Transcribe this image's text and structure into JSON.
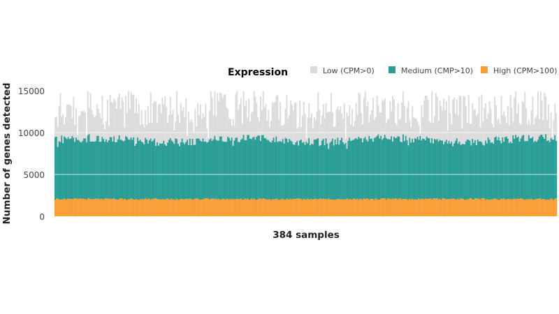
{
  "chart_data": {
    "type": "bar",
    "stacked": true,
    "n_samples": 384,
    "xlabel": "384 samples",
    "ylabel": "Number of genes detected",
    "ylim": [
      0,
      15000
    ],
    "yticks": [
      0,
      5000,
      10000,
      15000
    ],
    "grid": "horizontal",
    "legend": {
      "title": "Expression",
      "placement": "top-right",
      "entries": [
        {
          "name": "Low (CPM>0)",
          "color": "#dcdcdc"
        },
        {
          "name": "Medium (CMP>10)",
          "color": "#2a9d97"
        },
        {
          "name": "High (CPM>100)",
          "color": "#f79e36"
        }
      ]
    },
    "series_summary": {
      "High (CPM>100)": {
        "typical": 2050,
        "range": [
          1900,
          2200
        ]
      },
      "Medium (CMP>10)": {
        "typical_cumulative_top": 9200,
        "range": [
          8300,
          9800
        ]
      },
      "Low (CPM>0)": {
        "typical_total_top": 12800,
        "range": [
          8600,
          15000
        ]
      }
    }
  }
}
